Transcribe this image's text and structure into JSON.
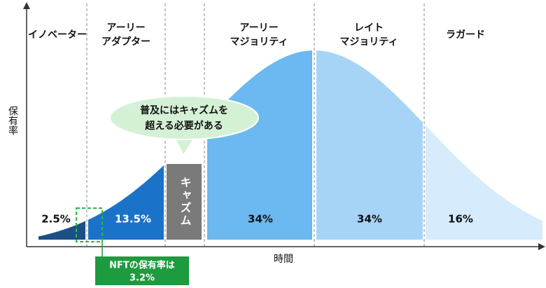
{
  "y_axis_label": "保有率",
  "x_axis_label": "時間",
  "segments": [
    {
      "label_lines": [
        "イノベーター"
      ],
      "share": "2.5%"
    },
    {
      "label_lines": [
        "アーリー",
        "アダプター"
      ],
      "share": "13.5%"
    },
    {
      "label_lines": [
        "アーリー",
        "マジョリティ"
      ],
      "share": "34%"
    },
    {
      "label_lines": [
        "レイト",
        "マジョリティ"
      ],
      "share": "34%"
    },
    {
      "label_lines": [
        "ラガード"
      ],
      "share": "16%"
    }
  ],
  "chasm_label": "キャズム",
  "callout_lines": [
    "普及にはキャズムを",
    "超える必要がある"
  ],
  "nft_note_lines": [
    "NFTの保有率は",
    "3.2%"
  ]
}
